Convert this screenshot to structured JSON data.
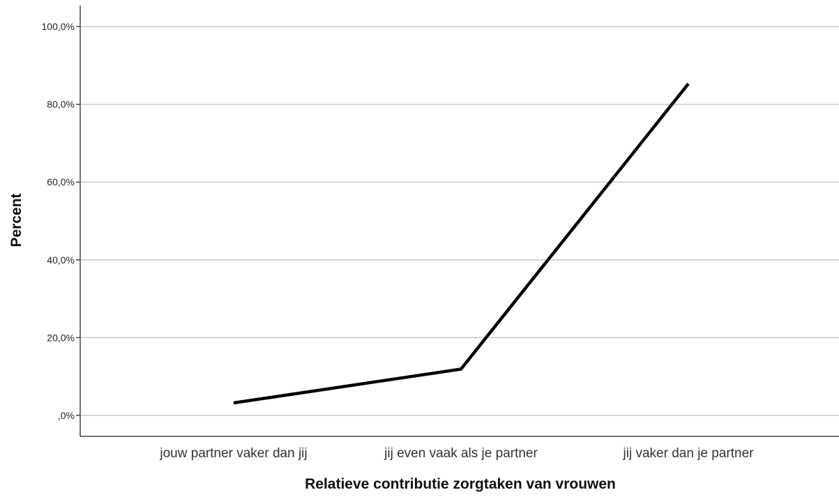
{
  "chart_data": {
    "type": "line",
    "categories": [
      "jouw partner vaker dan jij",
      "jij even vaak als je partner",
      "jij vaker dan je partner"
    ],
    "series": [
      {
        "values": [
          3.2,
          11.9,
          85.3
        ],
        "color": "#000000"
      }
    ],
    "xlabel": "Relatieve contributie zorgtaken van vrouwen",
    "ylabel": "Percent",
    "yticks": [
      0,
      20,
      40,
      60,
      80,
      100
    ],
    "ytick_labels": [
      ",0%",
      "20,0%",
      "40,0%",
      "60,0%",
      "80,0%",
      "100,0%"
    ],
    "ylim": [
      -5.4,
      105.4
    ],
    "grid": true,
    "grid_color": "#c8c8c8",
    "legend": "none"
  }
}
